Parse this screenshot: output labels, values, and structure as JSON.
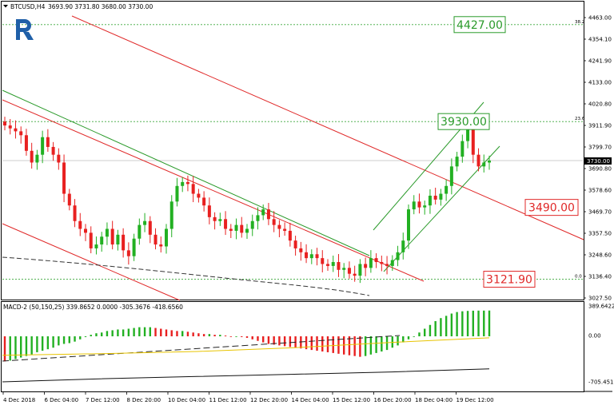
{
  "header": {
    "symbol": "BTCUSD,H4",
    "ohlc": "3693.90 3731.80 3680.00 3730.00",
    "macd_label": "MACD-2 (50,150,25) 339.8652 0.0000 -305.3676 -418.6560"
  },
  "logo": {
    "icon": "roboforex-r-logo"
  },
  "colors": {
    "bull": "#22b022",
    "bear": "#e82020",
    "resistance": "#2a9a2a",
    "support": "#e02828",
    "fib": "#3aa83a"
  },
  "chart_data": {
    "type": "candlestick",
    "symbol": "BTCUSD",
    "timeframe": "H4",
    "ylim": [
      3027.5,
      4500
    ],
    "y_ticks": [
      "4463.00",
      "4354.10",
      "4241.90",
      "4133.00",
      "4020.80",
      "3911.90",
      "3799.70",
      "3690.80",
      "3578.60",
      "3469.70",
      "3357.50",
      "3248.60",
      "3136.40",
      "3027.50"
    ],
    "x_ticks": [
      "4 Dec 2018",
      "6 Dec 04:00",
      "7 Dec 12:00",
      "8 Dec 20:00",
      "10 Dec 04:00",
      "11 Dec 12:00",
      "12 Dec 20:00",
      "14 Dec 04:00",
      "15 Dec 12:00",
      "16 Dec 20:00",
      "18 Dec 04:00",
      "19 Dec 12:00"
    ],
    "current_price": "3730.00",
    "fib_levels": [
      {
        "label": "38.2",
        "value": 4427.0
      },
      {
        "label": "23.6",
        "value": 3930.0
      },
      {
        "label": "0.0",
        "value": 3121.9
      }
    ],
    "level_boxes": [
      {
        "text": "4427.00",
        "value": 4427.0,
        "kind": "resistance"
      },
      {
        "text": "3930.00",
        "value": 3930.0,
        "kind": "resistance"
      },
      {
        "text": "3490.00",
        "value": 3490.0,
        "kind": "support"
      },
      {
        "text": "3121.90",
        "value": 3121.9,
        "kind": "support"
      }
    ],
    "closes": [
      3910,
      3895,
      3880,
      3860,
      3780,
      3720,
      3760,
      3850,
      3800,
      3760,
      3720,
      3560,
      3500,
      3420,
      3380,
      3360,
      3280,
      3300,
      3340,
      3380,
      3300,
      3350,
      3270,
      3240,
      3330,
      3400,
      3420,
      3350,
      3300,
      3290,
      3380,
      3520,
      3600,
      3620,
      3610,
      3560,
      3540,
      3500,
      3440,
      3420,
      3430,
      3380,
      3370,
      3400,
      3360,
      3380,
      3420,
      3450,
      3480,
      3430,
      3400,
      3380,
      3370,
      3320,
      3280,
      3260,
      3230,
      3250,
      3230,
      3200,
      3190,
      3210,
      3170,
      3180,
      3150,
      3140,
      3200,
      3180,
      3230,
      3210,
      3200,
      3190,
      3220,
      3260,
      3320,
      3480,
      3520,
      3490,
      3500,
      3550,
      3530,
      3560,
      3600,
      3700,
      3750,
      3830,
      3900,
      3760,
      3700,
      3720,
      3730
    ],
    "macd": {
      "ylim": [
        -705.4517,
        389.6422
      ],
      "y_ticks": [
        "389.6422",
        "0.00",
        "-705.4517"
      ],
      "histogram": [
        -330,
        -320,
        -300,
        -280,
        -260,
        -240,
        -210,
        -190,
        -170,
        -150,
        -120,
        -100,
        -90,
        -70,
        -40,
        -10,
        20,
        40,
        50,
        70,
        80,
        90,
        90,
        100,
        110,
        120,
        120,
        120,
        110,
        100,
        90,
        80,
        70,
        70,
        60,
        50,
        40,
        30,
        30,
        20,
        20,
        10,
        0,
        0,
        -10,
        -20,
        -40,
        -60,
        -80,
        -100,
        -110,
        -120,
        -130,
        -140,
        -150,
        -160,
        -170,
        -180,
        -190,
        -200,
        -210,
        -220,
        -230,
        -240,
        -250,
        -260,
        -270,
        -260,
        -240,
        -220,
        -200,
        -180,
        -150,
        -120,
        -80,
        -40,
        0,
        50,
        100,
        150,
        200,
        240,
        270,
        300,
        320,
        330,
        335,
        338,
        339,
        339,
        339.8
      ],
      "signal_line": [
        -250,
        -230,
        -200,
        -150,
        -80,
        -20
      ],
      "long_line": [
        -600,
        -560,
        -530,
        -500,
        -470,
        -430
      ]
    }
  }
}
